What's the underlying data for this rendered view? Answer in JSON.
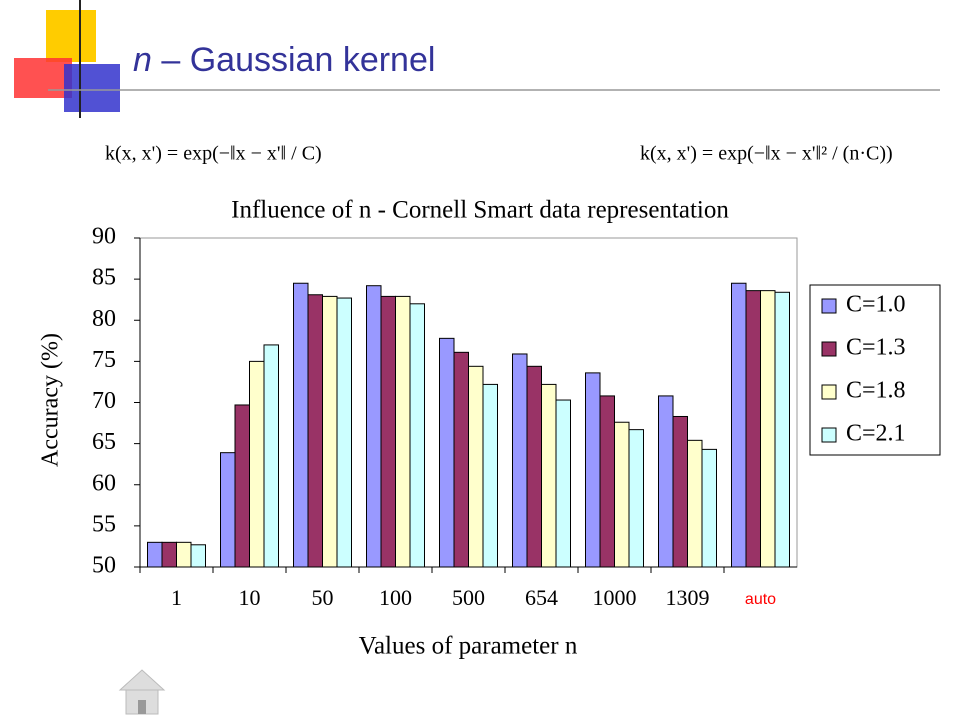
{
  "slide": {
    "title_var": "n",
    "title_rest": "– Gaussian kernel",
    "formulas": [
      "k(x, x') = exp(−‖x − x'‖ / C)",
      "k(x, x') = exp(−‖x − x'‖² / (n·C))"
    ]
  },
  "chart_data": {
    "type": "bar",
    "title": "Influence of n - Cornell Smart data representation",
    "x_label": "Values of parameter n",
    "y_label": "Accuracy (%)",
    "categories": [
      "1",
      "10",
      "50",
      "100",
      "500",
      "654",
      "1000",
      "1309",
      "auto"
    ],
    "category_label_colors": [
      "#000000",
      "#000000",
      "#000000",
      "#000000",
      "#000000",
      "#000000",
      "#000000",
      "#000000",
      "#ff0000"
    ],
    "series": [
      {
        "name": "C=1.0",
        "color": "#9999ff",
        "values": [
          53,
          63.9,
          84.5,
          84.2,
          77.8,
          75.9,
          73.6,
          70.8,
          84.5
        ]
      },
      {
        "name": "C=1.3",
        "color": "#993366",
        "values": [
          53,
          69.7,
          83.1,
          82.9,
          76.1,
          74.4,
          70.8,
          68.3,
          83.6
        ]
      },
      {
        "name": "C=1.8",
        "color": "#ffffcc",
        "values": [
          53,
          75,
          82.9,
          82.9,
          74.4,
          72.2,
          67.6,
          65.4,
          83.6
        ]
      },
      {
        "name": "C=2.1",
        "color": "#ccffff",
        "values": [
          52.7,
          77,
          82.7,
          82,
          72.2,
          70.3,
          66.7,
          64.3,
          83.4
        ]
      }
    ],
    "ylim": [
      50,
      90
    ],
    "yticks": [
      50,
      55,
      60,
      65,
      70,
      75,
      80,
      85,
      90
    ],
    "grid": false,
    "legend": "right"
  }
}
